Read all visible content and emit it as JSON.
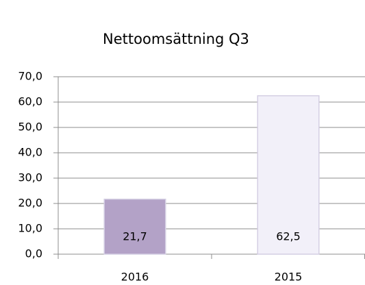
{
  "chart_data": {
    "type": "bar",
    "title": "Nettoomsättning Q3",
    "categories": [
      "2016",
      "2015"
    ],
    "values": [
      21.7,
      62.5
    ],
    "value_labels": [
      "21,7",
      "62,5"
    ],
    "colors": [
      "#b3a2c7",
      "#f2f0f9"
    ],
    "ylim": [
      0,
      70
    ],
    "yticks": [
      {
        "value": 0,
        "label": "0,0"
      },
      {
        "value": 10,
        "label": "10,0"
      },
      {
        "value": 20,
        "label": "20,0"
      },
      {
        "value": 30,
        "label": "30,0"
      },
      {
        "value": 40,
        "label": "40,0"
      },
      {
        "value": 50,
        "label": "50,0"
      },
      {
        "value": 60,
        "label": "60,0"
      },
      {
        "value": 70,
        "label": "70,0"
      }
    ],
    "grid": true
  }
}
